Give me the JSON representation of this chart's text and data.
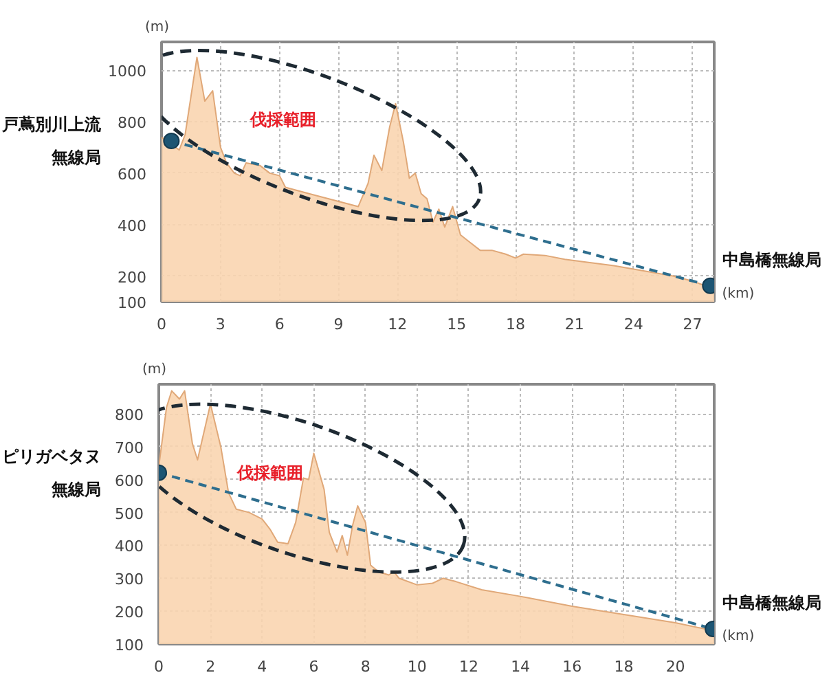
{
  "chart_data": [
    {
      "type": "area",
      "xlabel": "(km)",
      "ylabel": "(m)",
      "xlim": [
        0,
        28.1
      ],
      "ylim": [
        100,
        1110
      ],
      "xticks": [
        0,
        3,
        6,
        9,
        12,
        15,
        18,
        21,
        24,
        27
      ],
      "yticks": [
        100,
        200,
        400,
        600,
        800,
        1000
      ],
      "grid": true,
      "series": [
        {
          "color": "#f9d5b0",
          "x": [
            0,
            0.9,
            1.2,
            1.8,
            2.2,
            2.6,
            3.0,
            3.3,
            3.7,
            4.0,
            4.3,
            5.0,
            5.5,
            6.0,
            6.3,
            7.5,
            8.5,
            9.5,
            10.0,
            10.5,
            10.8,
            11.2,
            11.6,
            11.9,
            12.3,
            12.6,
            12.9,
            13.2,
            13.5,
            13.8,
            14.1,
            14.4,
            14.8,
            15.2,
            15.7,
            16.2,
            16.8,
            17.5,
            18.0,
            18.4,
            19.5,
            20.5,
            21.5,
            23,
            24.5,
            26,
            27,
            28.1
          ],
          "values": [
            740,
            690,
            750,
            1050,
            880,
            920,
            700,
            640,
            600,
            590,
            640,
            630,
            600,
            590,
            545,
            520,
            500,
            480,
            470,
            560,
            670,
            610,
            780,
            870,
            720,
            580,
            600,
            520,
            500,
            410,
            460,
            390,
            470,
            360,
            330,
            300,
            300,
            285,
            270,
            285,
            280,
            265,
            255,
            240,
            220,
            200,
            180,
            150
          ]
        },
        {
          "type": "line",
          "color": "#2e6e8e",
          "marker": "circle",
          "line_style": "dashed",
          "x": [
            0.5,
            27.9
          ],
          "values": [
            725,
            162
          ]
        }
      ],
      "annotations": [
        "戸蔦別川上流",
        "無線局",
        "中島橋無線局",
        "伐採範囲"
      ]
    },
    {
      "type": "area",
      "xlabel": "(km)",
      "ylabel": "(m)",
      "xlim": [
        0,
        21.5
      ],
      "ylim": [
        100,
        890
      ],
      "xticks": [
        0,
        2,
        4,
        6,
        8,
        10,
        12,
        14,
        16,
        18,
        20
      ],
      "yticks": [
        100,
        200,
        300,
        400,
        500,
        600,
        700,
        800
      ],
      "grid": true,
      "series": [
        {
          "color": "#f9d5b0",
          "x": [
            0,
            0.3,
            0.5,
            0.8,
            1.0,
            1.3,
            1.5,
            2.0,
            2.4,
            2.7,
            3.0,
            3.5,
            4.0,
            4.3,
            4.6,
            5.0,
            5.3,
            5.6,
            5.8,
            6.0,
            6.4,
            6.6,
            6.9,
            7.1,
            7.3,
            7.5,
            7.7,
            8.0,
            8.2,
            8.5,
            8.9,
            9.1,
            9.3,
            10.0,
            10.6,
            11.0,
            11.5,
            12.5,
            14,
            16,
            18,
            20,
            21.5
          ],
          "values": [
            640,
            820,
            870,
            845,
            870,
            710,
            660,
            830,
            700,
            560,
            510,
            500,
            480,
            450,
            410,
            405,
            470,
            605,
            600,
            680,
            570,
            440,
            380,
            430,
            370,
            460,
            520,
            470,
            340,
            320,
            310,
            320,
            300,
            280,
            285,
            300,
            290,
            265,
            245,
            215,
            190,
            165,
            140
          ]
        },
        {
          "type": "line",
          "color": "#2e6e8e",
          "marker": "circle",
          "line_style": "dashed",
          "x": [
            0,
            21.45
          ],
          "values": [
            621,
            146
          ]
        }
      ],
      "annotations": [
        "ピリガベタヌ",
        "無線局",
        "中島橋無線局",
        "伐採範囲"
      ]
    }
  ]
}
